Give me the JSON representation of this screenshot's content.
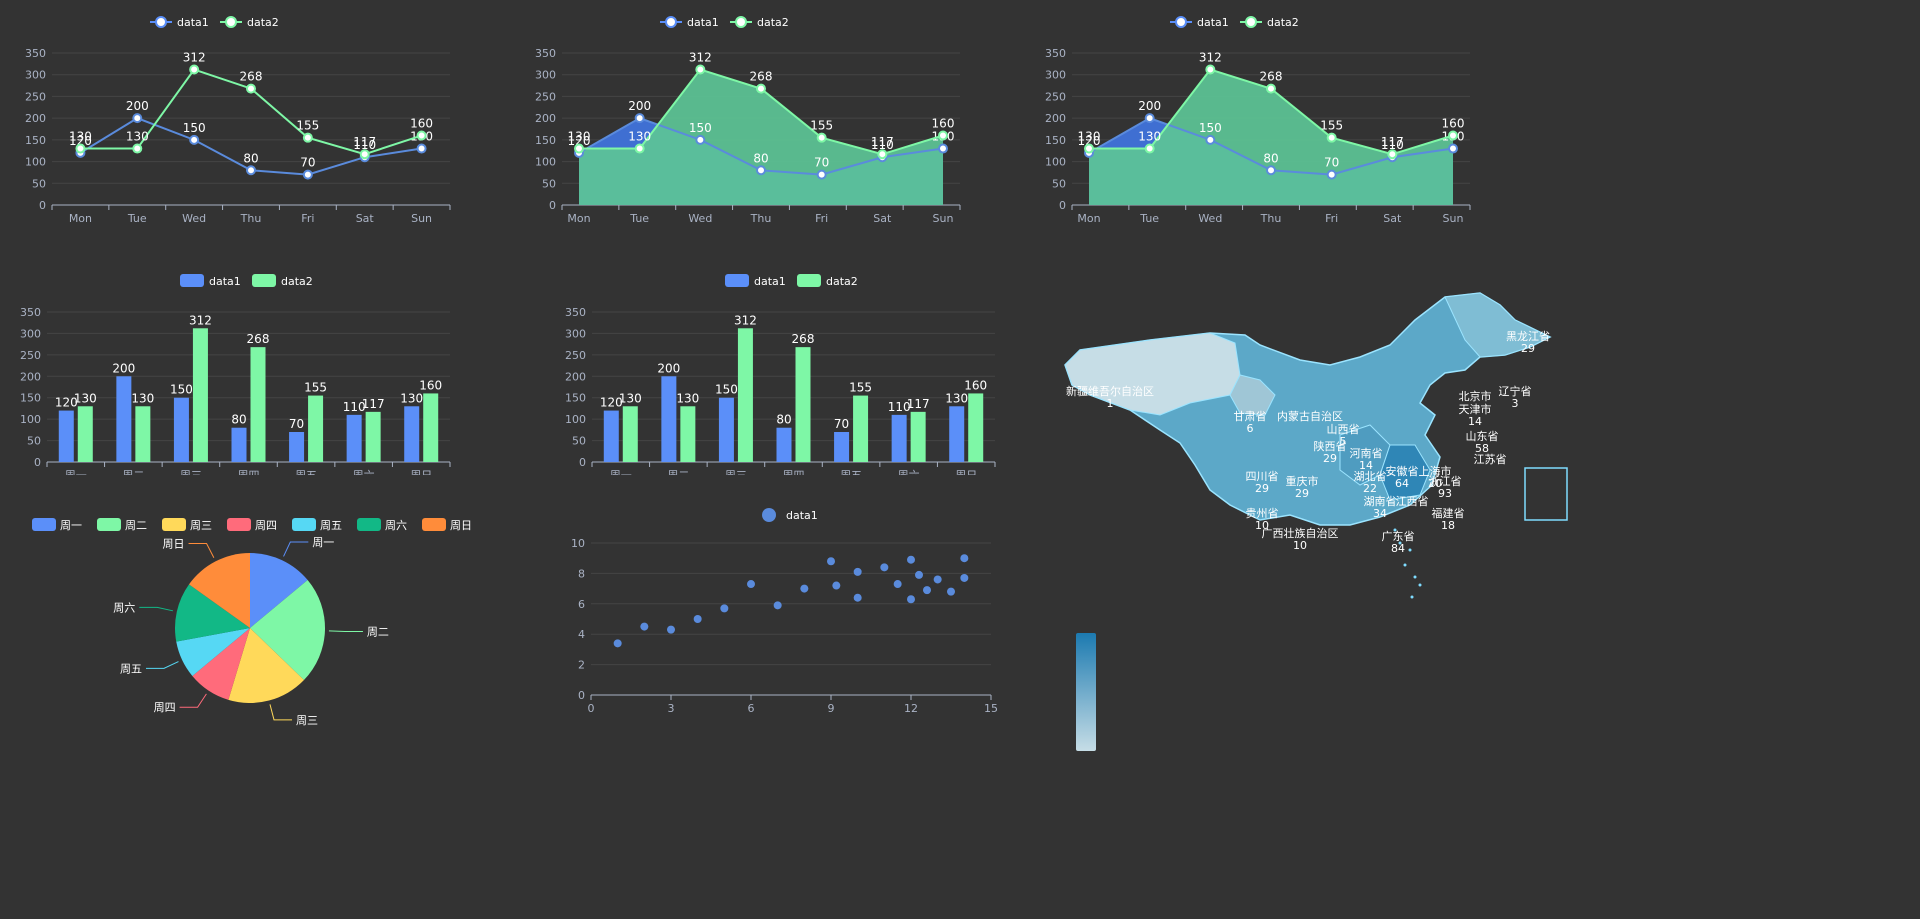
{
  "colors": {
    "background": "#333333",
    "data1": "#5b8ff9",
    "data1_line": "#5a8bdc",
    "data2": "#7ef7a6",
    "area1": "#3f6fd2",
    "area2": "#5cc496",
    "axis": "#aab3c5",
    "grid": "#444444",
    "label": "#ffffff",
    "pie": [
      "#5b8ff9",
      "#7ef7a6",
      "#ffd95a",
      "#ff6b7b",
      "#56d8f4",
      "#12b886",
      "#ff8c3a"
    ]
  },
  "chart_data": [
    {
      "type": "line",
      "legend": [
        "data1",
        "data2"
      ],
      "categories": [
        "Mon",
        "Tue",
        "Wed",
        "Thu",
        "Fri",
        "Sat",
        "Sun"
      ],
      "series": [
        {
          "name": "data1",
          "values": [
            120,
            200,
            150,
            80,
            70,
            110,
            130
          ]
        },
        {
          "name": "data2",
          "values": [
            130,
            130,
            312,
            268,
            155,
            117,
            160
          ]
        }
      ],
      "ylim": [
        0,
        350
      ],
      "yticks": [
        0,
        50,
        100,
        150,
        200,
        250,
        300,
        350
      ],
      "area": false
    },
    {
      "type": "area",
      "legend": [
        "data1",
        "data2"
      ],
      "categories": [
        "Mon",
        "Tue",
        "Wed",
        "Thu",
        "Fri",
        "Sat",
        "Sun"
      ],
      "series": [
        {
          "name": "data1",
          "values": [
            120,
            200,
            150,
            80,
            70,
            110,
            130
          ]
        },
        {
          "name": "data2",
          "values": [
            130,
            130,
            312,
            268,
            155,
            117,
            160
          ]
        }
      ],
      "ylim": [
        0,
        350
      ],
      "yticks": [
        0,
        50,
        100,
        150,
        200,
        250,
        300,
        350
      ],
      "area": true
    },
    {
      "type": "area",
      "legend": [
        "data1",
        "data2"
      ],
      "categories": [
        "Mon",
        "Tue",
        "Wed",
        "Thu",
        "Fri",
        "Sat",
        "Sun"
      ],
      "series": [
        {
          "name": "data1",
          "values": [
            120,
            200,
            150,
            80,
            70,
            110,
            130
          ]
        },
        {
          "name": "data2",
          "values": [
            130,
            130,
            312,
            268,
            155,
            117,
            160
          ]
        }
      ],
      "ylim": [
        0,
        350
      ],
      "yticks": [
        0,
        50,
        100,
        150,
        200,
        250,
        300,
        350
      ],
      "area": true
    },
    {
      "type": "bar",
      "legend": [
        "data1",
        "data2"
      ],
      "categories": [
        "周一",
        "周二",
        "周三",
        "周四",
        "周五",
        "周六",
        "周日"
      ],
      "series": [
        {
          "name": "data1",
          "values": [
            120,
            200,
            150,
            80,
            70,
            110,
            130
          ]
        },
        {
          "name": "data2",
          "values": [
            130,
            130,
            312,
            268,
            155,
            117,
            160
          ]
        }
      ],
      "ylim": [
        0,
        350
      ],
      "yticks": [
        0,
        50,
        100,
        150,
        200,
        250,
        300,
        350
      ]
    },
    {
      "type": "bar",
      "legend": [
        "data1",
        "data2"
      ],
      "categories": [
        "周一",
        "周二",
        "周三",
        "周四",
        "周五",
        "周六",
        "周日"
      ],
      "series": [
        {
          "name": "data1",
          "values": [
            120,
            200,
            150,
            80,
            70,
            110,
            130
          ]
        },
        {
          "name": "data2",
          "values": [
            130,
            130,
            312,
            268,
            155,
            117,
            160
          ]
        }
      ],
      "ylim": [
        0,
        350
      ],
      "yticks": [
        0,
        50,
        100,
        150,
        200,
        250,
        300,
        350
      ]
    },
    {
      "type": "pie",
      "legend": [
        "周一",
        "周二",
        "周三",
        "周四",
        "周五",
        "周六",
        "周日"
      ],
      "categories": [
        "周一",
        "周二",
        "周三",
        "周四",
        "周五",
        "周六",
        "周日"
      ],
      "values": [
        120,
        200,
        150,
        80,
        70,
        110,
        130
      ]
    },
    {
      "type": "scatter",
      "legend": [
        "data1"
      ],
      "series": [
        {
          "name": "data1",
          "points": [
            [
              1,
              3.4
            ],
            [
              2,
              4.5
            ],
            [
              3,
              4.3
            ],
            [
              4,
              5.0
            ],
            [
              5,
              5.7
            ],
            [
              6,
              7.3
            ],
            [
              7,
              5.9
            ],
            [
              8,
              7.0
            ],
            [
              9,
              8.8
            ],
            [
              9.2,
              7.2
            ],
            [
              10,
              8.1
            ],
            [
              10,
              6.4
            ],
            [
              11,
              8.4
            ],
            [
              11.5,
              7.3
            ],
            [
              12,
              8.9
            ],
            [
              12,
              6.3
            ],
            [
              12.3,
              7.9
            ],
            [
              12.6,
              6.9
            ],
            [
              13,
              7.6
            ],
            [
              13.5,
              6.8
            ],
            [
              14,
              9.0
            ],
            [
              14,
              7.7
            ]
          ]
        }
      ],
      "xlim": [
        0,
        15
      ],
      "ylim": [
        0,
        10
      ],
      "xticks": [
        0,
        3,
        6,
        9,
        12,
        15
      ],
      "yticks": [
        0,
        2,
        4,
        6,
        8,
        10
      ]
    },
    {
      "type": "map",
      "labels": [
        {
          "name": "黑龙江省",
          "value": "29"
        },
        {
          "name": "新疆维吾尔自治区",
          "value": "1"
        },
        {
          "name": "辽宁省",
          "value": "3"
        },
        {
          "name": "北京市",
          "value": ""
        },
        {
          "name": "天津市",
          "value": "14"
        },
        {
          "name": "甘肃省",
          "value": "6"
        },
        {
          "name": "内蒙古自治区",
          "value": ""
        },
        {
          "name": "山西省",
          "value": "5"
        },
        {
          "name": "山东省",
          "value": "58"
        },
        {
          "name": "陕西省",
          "value": "29"
        },
        {
          "name": "河南省",
          "value": "14"
        },
        {
          "name": "江苏省",
          "value": ""
        },
        {
          "name": "四川省",
          "value": "29"
        },
        {
          "name": "重庆市",
          "value": "29"
        },
        {
          "name": "湖北省",
          "value": "22"
        },
        {
          "name": "安徽省",
          "value": "64"
        },
        {
          "name": "上海市",
          "value": "20"
        },
        {
          "name": "浙江省",
          "value": "93"
        },
        {
          "name": "贵州省",
          "value": "10"
        },
        {
          "name": "湖南省",
          "value": "34"
        },
        {
          "name": "江西省",
          "value": ""
        },
        {
          "name": "福建省",
          "value": "18"
        },
        {
          "name": "广西壮族自治区",
          "value": "10"
        },
        {
          "name": "广东省",
          "value": "84"
        }
      ]
    }
  ]
}
